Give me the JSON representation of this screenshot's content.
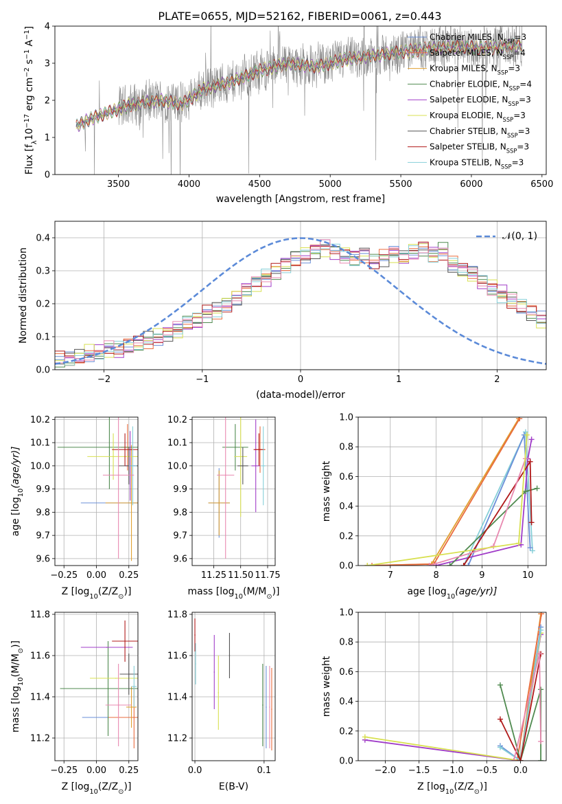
{
  "title": "PLATE=0655, MJD=52162, FIBERID=0061, z=0.443",
  "colors": {
    "chabrier_miles": "#6a8fd8",
    "salpeter_miles": "#e96b3d",
    "kroupa_miles": "#e0a030",
    "chabrier_elodie": "#4f8a4f",
    "salpeter_elodie": "#a03cc8",
    "kroupa_elodie": "#d8e050",
    "chabrier_stelib": "#555555",
    "salpeter_stelib": "#b01818",
    "kroupa_stelib": "#86cfd8",
    "pink": "#e888b0",
    "data": "#888888",
    "gaussian": "#5b8ad8"
  },
  "chart_data": [
    {
      "type": "line",
      "xlabel": "wavelength [Angstrom, rest frame]",
      "ylabel_pre": "Flux [f",
      "ylabel_sub": "λ",
      "ylabel_post": "10",
      "ylabel_sup1": "−17",
      "ylabel_mid": " erg cm",
      "ylabel_sup2": "−2",
      "ylabel_mid2": " s",
      "ylabel_sup3": "−1",
      "ylabel_mid3": " A",
      "ylabel_sup4": "−1",
      "ylabel_end": "]",
      "xlim": [
        3050,
        6530
      ],
      "ylim": [
        0,
        4
      ],
      "xticks": [
        3500,
        4000,
        4500,
        5000,
        5500,
        6000,
        6500
      ],
      "yticks": [
        0,
        1,
        2,
        3,
        4
      ],
      "spectrum_anchor_x": [
        3200,
        3300,
        3450,
        3600,
        3800,
        3950,
        4100,
        4300,
        4500,
        4700,
        4900,
        5100,
        5300,
        5500,
        5700,
        5900,
        6100,
        6350
      ],
      "spectrum_anchor_y": [
        1.3,
        1.5,
        1.7,
        1.9,
        2.0,
        1.9,
        2.3,
        2.5,
        2.8,
        3.0,
        2.9,
        3.1,
        3.2,
        3.3,
        3.4,
        3.45,
        3.4,
        3.5
      ],
      "legend": [
        {
          "name": "Chabrier MILES, N",
          "sub": "SSP",
          "n": "=3",
          "color": "#6a8fd8"
        },
        {
          "name": "Salpeter MILES, N",
          "sub": "SSP",
          "n": "=4",
          "color": "#e96b3d"
        },
        {
          "name": "Kroupa MILES, N",
          "sub": "SSP",
          "n": "=3",
          "color": "#e0a030"
        },
        {
          "name": "Chabrier ELODIE, N",
          "sub": "SSP",
          "n": "=4",
          "color": "#4f8a4f"
        },
        {
          "name": "Salpeter ELODIE, N",
          "sub": "SSP",
          "n": "=3",
          "color": "#a03cc8"
        },
        {
          "name": "Kroupa ELODIE, N",
          "sub": "SSP",
          "n": "=3",
          "color": "#d8e050"
        },
        {
          "name": "Chabrier STELIB, N",
          "sub": "SSP",
          "n": "=3",
          "color": "#555555"
        },
        {
          "name": "Salpeter STELIB, N",
          "sub": "SSP",
          "n": "=3",
          "color": "#b01818"
        },
        {
          "name": "Kroupa STELIB, N",
          "sub": "SSP",
          "n": "=3",
          "color": "#86cfd8"
        }
      ]
    },
    {
      "type": "bar",
      "xlabel": "(data-model)/error",
      "ylabel": "Normed distribution",
      "xlim": [
        -2.5,
        2.5
      ],
      "ylim": [
        0,
        0.45
      ],
      "xticks": [
        -2,
        -1,
        0,
        1,
        2
      ],
      "yticks": [
        0.0,
        0.1,
        0.2,
        0.3,
        0.4
      ],
      "legend": "𝒩(0, 1)",
      "bin_width": 0.1,
      "bin_start": -2.5,
      "hist_base": [
        0.03,
        0.03,
        0.04,
        0.05,
        0.05,
        0.06,
        0.06,
        0.07,
        0.08,
        0.09,
        0.1,
        0.11,
        0.12,
        0.14,
        0.15,
        0.17,
        0.18,
        0.2,
        0.22,
        0.24,
        0.26,
        0.28,
        0.3,
        0.32,
        0.34,
        0.35,
        0.36,
        0.37,
        0.36,
        0.35,
        0.34,
        0.35,
        0.33,
        0.34,
        0.35,
        0.34,
        0.36,
        0.37,
        0.35,
        0.36,
        0.32,
        0.3,
        0.29,
        0.27,
        0.25,
        0.23,
        0.21,
        0.19,
        0.17,
        0.15,
        0.14,
        0.12,
        0.11,
        0.1,
        0.09,
        0.08,
        0.07,
        0.07,
        0.06,
        0.05,
        0.05,
        0.04,
        0.04,
        0.03,
        0.03,
        0.03,
        0.02,
        0.02,
        0.02,
        0.02
      ]
    },
    {
      "type": "scatter",
      "xlabel_pre": "Z [log",
      "xlabel_sub": "10",
      "xlabel_post": "(Z/Z",
      "xlabel_sub2": "⊙",
      "xlabel_end": ")]",
      "ylabel_pre": "age  [log",
      "ylabel_sub": "10",
      "ylabel_post": "(age/yr)]",
      "xlim": [
        -0.32,
        0.32
      ],
      "ylim": [
        9.57,
        10.21
      ],
      "xticks": [
        -0.25,
        0.0,
        0.25
      ],
      "xticklabels": [
        "−0.25",
        "0.00",
        "0.25"
      ],
      "yticks": [
        9.6,
        9.7,
        9.8,
        9.9,
        10.0,
        10.1,
        10.2
      ],
      "points": [
        {
          "x": 0.25,
          "y": 9.84,
          "xerr": 0.37,
          "yerr": 0.0,
          "color": "#6a8fd8"
        },
        {
          "x": 0.24,
          "y": 10.08,
          "xerr": 0.05,
          "yerr": 0.1,
          "color": "#e96b3d"
        },
        {
          "x": 0.27,
          "y": 9.84,
          "xerr": 0.2,
          "yerr": 0.25,
          "color": "#e0a030"
        },
        {
          "x": 0.1,
          "y": 10.08,
          "xerr": 0.4,
          "yerr": 0.18,
          "color": "#4f8a4f"
        },
        {
          "x": 0.26,
          "y": 10.0,
          "xerr": 0.04,
          "yerr": 0.15,
          "color": "#a03cc8"
        },
        {
          "x": 0.13,
          "y": 10.04,
          "xerr": 0.2,
          "yerr": 0.1,
          "color": "#d8e050"
        },
        {
          "x": 0.25,
          "y": 10.0,
          "xerr": 0.08,
          "yerr": 0.08,
          "color": "#555555"
        },
        {
          "x": 0.22,
          "y": 10.07,
          "xerr": 0.1,
          "yerr": 0.07,
          "color": "#b01818"
        },
        {
          "x": 0.28,
          "y": 10.0,
          "xerr": 0.03,
          "yerr": 0.17,
          "color": "#86cfd8"
        },
        {
          "x": 0.17,
          "y": 9.96,
          "xerr": 0.12,
          "yerr": 0.36,
          "color": "#e888b0"
        }
      ]
    },
    {
      "type": "scatter",
      "xlabel_pre": "mass [log",
      "xlabel_sub": "10",
      "xlabel_post": "(M/M",
      "xlabel_sub2": "⊙",
      "xlabel_end": ")]",
      "xlim": [
        11.05,
        11.82
      ],
      "ylim": [
        9.57,
        10.21
      ],
      "xticks": [
        11.25,
        11.5,
        11.75
      ],
      "xticklabels": [
        "11.25",
        "11.50",
        "11.75"
      ],
      "yticks": [
        9.6,
        9.7,
        9.8,
        9.9,
        10.0,
        10.1,
        10.2
      ],
      "points": [
        {
          "x": 11.3,
          "y": 9.84,
          "xerr": 0.1,
          "yerr": 0.15,
          "color": "#6a8fd8"
        },
        {
          "x": 11.68,
          "y": 10.07,
          "xerr": 0.05,
          "yerr": 0.1,
          "color": "#e96b3d"
        },
        {
          "x": 11.3,
          "y": 9.84,
          "xerr": 0.1,
          "yerr": 0.14,
          "color": "#e0a030"
        },
        {
          "x": 11.45,
          "y": 10.08,
          "xerr": 0.12,
          "yerr": 0.1,
          "color": "#4f8a4f"
        },
        {
          "x": 11.64,
          "y": 10.0,
          "xerr": 0.04,
          "yerr": 0.2,
          "color": "#a03cc8"
        },
        {
          "x": 11.5,
          "y": 10.04,
          "xerr": 0.06,
          "yerr": 0.26,
          "color": "#d8e050"
        },
        {
          "x": 11.52,
          "y": 10.0,
          "xerr": 0.05,
          "yerr": 0.08,
          "color": "#555555"
        },
        {
          "x": 11.67,
          "y": 10.07,
          "xerr": 0.05,
          "yerr": 0.07,
          "color": "#b01818"
        },
        {
          "x": 11.71,
          "y": 10.0,
          "xerr": 0.02,
          "yerr": 0.17,
          "color": "#86cfd8"
        },
        {
          "x": 11.36,
          "y": 9.96,
          "xerr": 0.08,
          "yerr": 0.36,
          "color": "#e888b0"
        }
      ]
    },
    {
      "type": "line",
      "xlabel_pre": "age  [log",
      "xlabel_sub": "10",
      "xlabel_post": "(age/yr)]",
      "ylabel": "mass weight",
      "xlim": [
        6.3,
        10.4
      ],
      "ylim": [
        0,
        1
      ],
      "xticks": [
        7,
        8,
        9,
        10
      ],
      "yticks": [
        0.0,
        0.2,
        0.4,
        0.6,
        0.8,
        1.0
      ],
      "series": [
        {
          "color": "#e0a030",
          "x": [
            6.5,
            7.9,
            9.8
          ],
          "y": [
            0,
            0.01,
            0.99
          ]
        },
        {
          "color": "#e96b3d",
          "x": [
            6.6,
            7.95,
            9.82
          ],
          "y": [
            0,
            0.01,
            0.99
          ]
        },
        {
          "color": "#86cfd8",
          "x": [
            8.6,
            9.95,
            10.1
          ],
          "y": [
            0,
            0.9,
            0.1
          ]
        },
        {
          "color": "#6a8fd8",
          "x": [
            8.7,
            9.92,
            10.05
          ],
          "y": [
            0,
            0.88,
            0.12
          ]
        },
        {
          "color": "#a03cc8",
          "x": [
            8.0,
            9.85,
            10.0,
            10.08
          ],
          "y": [
            0,
            0.14,
            0.72,
            0.85
          ]
        },
        {
          "color": "#4f8a4f",
          "x": [
            8.3,
            9.95,
            10.2
          ],
          "y": [
            0,
            0.5,
            0.52
          ]
        },
        {
          "color": "#b01818",
          "x": [
            8.6,
            10.05,
            10.08
          ],
          "y": [
            0,
            0.7,
            0.29
          ]
        },
        {
          "color": "#e888b0",
          "x": [
            7.85,
            9.25,
            9.95
          ],
          "y": [
            0,
            0.13,
            0.72
          ]
        },
        {
          "color": "#d8e050",
          "x": [
            6.5,
            9.8,
            9.98
          ],
          "y": [
            0,
            0.15,
            0.88
          ]
        }
      ]
    },
    {
      "type": "scatter",
      "xlabel_pre": "Z [log",
      "xlabel_sub": "10",
      "xlabel_post": "(Z/Z",
      "xlabel_sub2": "⊙",
      "xlabel_end": ")]",
      "ylabel_pre": "mass [log",
      "ylabel_sub": "10",
      "ylabel_post": "(M/M",
      "ylabel_sub2": "⊙",
      "ylabel_end": ")]",
      "xlim": [
        -0.32,
        0.32
      ],
      "ylim": [
        11.09,
        11.81
      ],
      "xticks": [
        -0.25,
        0.0,
        0.25
      ],
      "xticklabels": [
        "−0.25",
        "0.00",
        "0.25"
      ],
      "yticks": [
        11.2,
        11.4,
        11.6,
        11.8
      ],
      "points": [
        {
          "x": 0.09,
          "y": 11.3,
          "xerr": 0.2,
          "yerr": 0.0,
          "color": "#6a8fd8"
        },
        {
          "x": 0.29,
          "y": 11.3,
          "xerr": 0.2,
          "yerr": 0.15,
          "color": "#e96b3d"
        },
        {
          "x": 0.27,
          "y": 11.35,
          "xerr": 0.04,
          "yerr": 0.1,
          "color": "#e0a030"
        },
        {
          "x": 0.09,
          "y": 11.44,
          "xerr": 0.37,
          "yerr": 0.23,
          "color": "#4f8a4f"
        },
        {
          "x": 0.08,
          "y": 11.64,
          "xerr": 0.2,
          "yerr": 0.0,
          "color": "#a03cc8"
        },
        {
          "x": 0.15,
          "y": 11.49,
          "xerr": 0.2,
          "yerr": 0.0,
          "color": "#d8e050"
        },
        {
          "x": 0.25,
          "y": 11.51,
          "xerr": 0.07,
          "yerr": 0.1,
          "color": "#555555"
        },
        {
          "x": 0.22,
          "y": 11.67,
          "xerr": 0.1,
          "yerr": 0.1,
          "color": "#b01818"
        },
        {
          "x": 0.29,
          "y": 11.45,
          "xerr": 0.02,
          "yerr": 0.1,
          "color": "#86cfd8"
        },
        {
          "x": 0.17,
          "y": 11.36,
          "xerr": 0.1,
          "yerr": 0.2,
          "color": "#e888b0"
        }
      ]
    },
    {
      "type": "scatter",
      "xlabel": "E(B-V)",
      "xlim": [
        -0.004,
        0.116
      ],
      "ylim": [
        11.09,
        11.81
      ],
      "xticks": [
        0.0,
        0.1
      ],
      "xticklabels": [
        "0.0",
        "0.1"
      ],
      "yticks": [
        11.2,
        11.4,
        11.6,
        11.8
      ],
      "points": [
        {
          "x": 0.0,
          "y": 11.7,
          "yerr": 0.08,
          "color": "#b01818"
        },
        {
          "x": 0.001,
          "y": 11.56,
          "yerr": 0.1,
          "color": "#86cfd8"
        },
        {
          "x": 0.028,
          "y": 11.52,
          "yerr": 0.18,
          "color": "#a03cc8"
        },
        {
          "x": 0.034,
          "y": 11.42,
          "yerr": 0.18,
          "color": "#d8e050"
        },
        {
          "x": 0.05,
          "y": 11.6,
          "yerr": 0.11,
          "color": "#555555"
        },
        {
          "x": 0.098,
          "y": 11.36,
          "yerr": 0.2,
          "color": "#4f8a4f"
        },
        {
          "x": 0.103,
          "y": 11.35,
          "yerr": 0.2,
          "color": "#6a8fd8"
        },
        {
          "x": 0.108,
          "y": 11.35,
          "yerr": 0.2,
          "color": "#e888b0"
        },
        {
          "x": 0.111,
          "y": 11.34,
          "yerr": 0.2,
          "color": "#e96b3d"
        }
      ]
    },
    {
      "type": "line",
      "xlabel_pre": "Z [log",
      "xlabel_sub": "10",
      "xlabel_post": "(Z/Z",
      "xlabel_sub2": "⊙",
      "xlabel_end": ")]",
      "ylabel": "mass weight",
      "xlim": [
        -2.4,
        0.38
      ],
      "ylim": [
        0,
        1
      ],
      "xticks": [
        -2.0,
        -1.5,
        -1.0,
        -0.5,
        0.0
      ],
      "xticklabels": [
        "−2.0",
        "−1.5",
        "−1.0",
        "−0.5",
        "0.0"
      ],
      "yticks": [
        0.0,
        0.2,
        0.4,
        0.6,
        0.8,
        1.0
      ],
      "series": [
        {
          "color": "#a03cc8",
          "x": [
            -2.3,
            0.0,
            0.3
          ],
          "y": [
            0.14,
            0.0,
            0.85
          ]
        },
        {
          "color": "#d8e050",
          "x": [
            -2.3,
            0.0,
            0.3
          ],
          "y": [
            0.16,
            0.0,
            0.86
          ]
        },
        {
          "color": "#e0a030",
          "x": [
            0.0,
            0.3
          ],
          "y": [
            0.0,
            0.99
          ]
        },
        {
          "color": "#e96b3d",
          "x": [
            -0.05,
            0.31
          ],
          "y": [
            0.0,
            0.99
          ]
        },
        {
          "color": "#6a8fd8",
          "x": [
            -0.3,
            0.0,
            0.3
          ],
          "y": [
            0.1,
            0.0,
            0.9
          ]
        },
        {
          "color": "#86cfd8",
          "x": [
            -0.3,
            0.0,
            0.3
          ],
          "y": [
            0.09,
            0.0,
            0.88
          ]
        },
        {
          "color": "#4f8a4f",
          "x": [
            -0.3,
            0.0,
            0.3,
            0.3
          ],
          "y": [
            0.51,
            0.0,
            0.48,
            0.0
          ]
        },
        {
          "color": "#b01818",
          "x": [
            -0.3,
            0.0,
            0.3
          ],
          "y": [
            0.28,
            0.0,
            0.72
          ]
        },
        {
          "color": "#e888b0",
          "x": [
            -0.1,
            0.28,
            0.3
          ],
          "y": [
            0.0,
            0.72,
            0.13
          ]
        }
      ]
    }
  ]
}
